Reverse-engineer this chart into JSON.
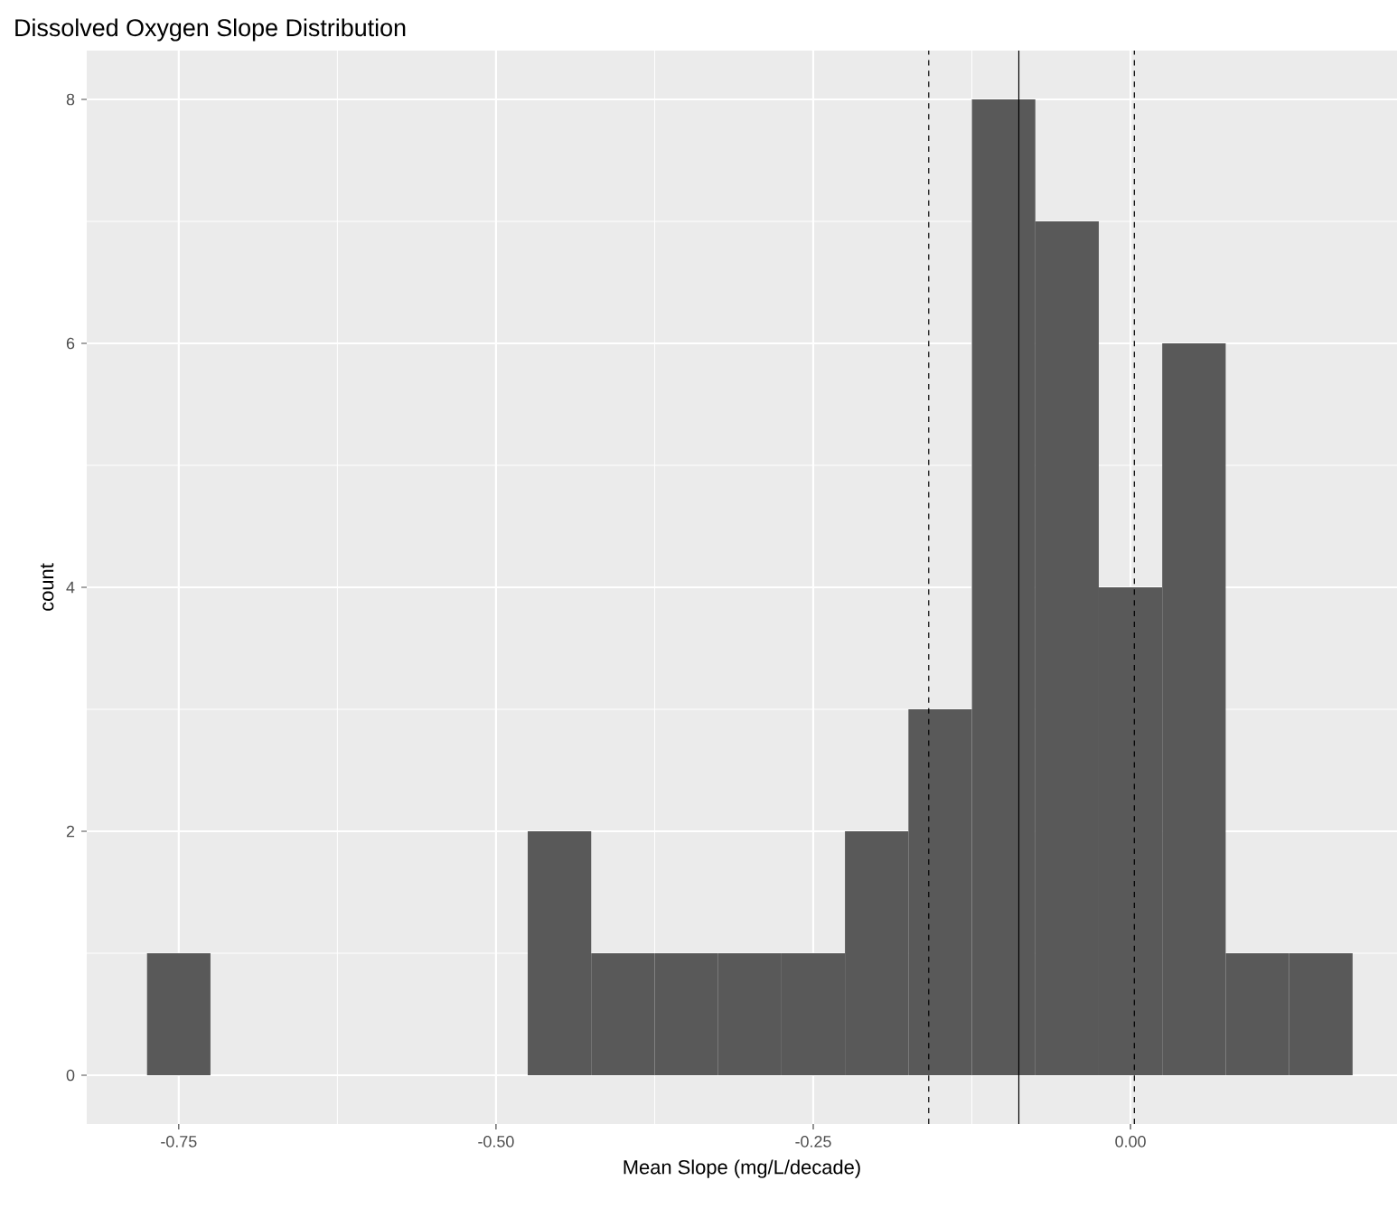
{
  "chart_data": {
    "type": "histogram",
    "title": "Dissolved Oxygen Slope Distribution",
    "xlabel": "Mean Slope (mg/L/decade)",
    "ylabel": "count",
    "bins": [
      -0.775,
      -0.725,
      -0.675,
      -0.625,
      -0.575,
      -0.525,
      -0.475,
      -0.425,
      -0.375,
      -0.325,
      -0.275,
      -0.225,
      -0.175,
      -0.125,
      -0.075,
      -0.025,
      0.025,
      0.075,
      0.125,
      0.175
    ],
    "values": [
      1,
      0,
      0,
      0,
      0,
      0,
      2,
      1,
      1,
      1,
      1,
      2,
      3,
      8,
      7,
      4,
      6,
      1,
      1
    ],
    "color": "#595959",
    "xlim": [
      -0.8225,
      0.21
    ],
    "ylim": [
      -0.4,
      8.4
    ],
    "xticks": [
      {
        "value": -0.75,
        "label": "-0.75"
      },
      {
        "value": -0.5,
        "label": "-0.50"
      },
      {
        "value": -0.25,
        "label": "-0.25"
      },
      {
        "value": 0,
        "label": "0.00"
      }
    ],
    "yticks": [
      0,
      2,
      4,
      6,
      8
    ],
    "grid": true,
    "ref_lines": [
      {
        "axis": "x",
        "value": -0.159,
        "line_style": "dashed",
        "color": "#000000"
      },
      {
        "axis": "x",
        "value": -0.088,
        "line_style": "solid",
        "color": "#000000"
      },
      {
        "axis": "x",
        "value": 0.003,
        "line_style": "dashed",
        "color": "#000000"
      }
    ]
  }
}
